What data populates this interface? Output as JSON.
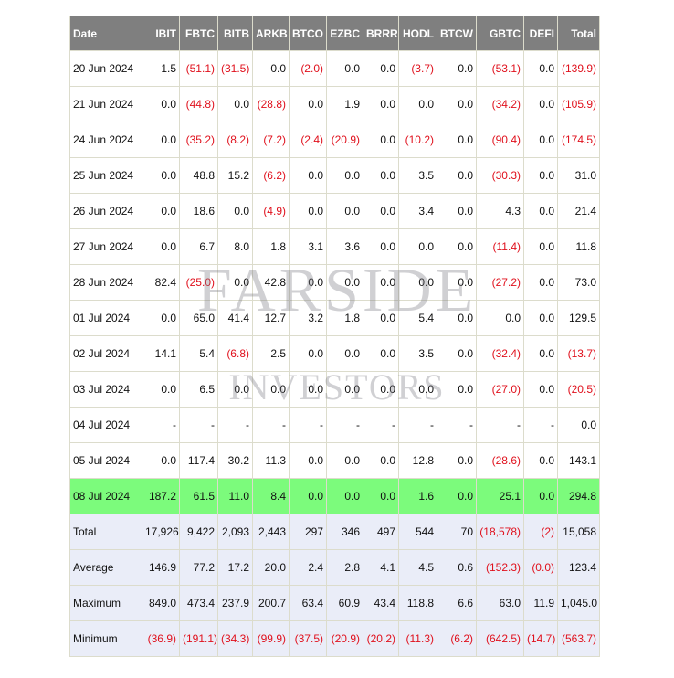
{
  "watermark": {
    "line1": "FARSIDE",
    "line2": "INVESTORS"
  },
  "table": {
    "header": [
      "Date",
      "IBIT",
      "FBTC",
      "BITB",
      "ARKB",
      "BTCO",
      "EZBC",
      "BRRR",
      "HODL",
      "BTCW",
      "GBTC",
      "DEFI",
      "Total"
    ],
    "rows": [
      [
        "20 Jun 2024",
        "1.5",
        "(51.1)",
        "(31.5)",
        "0.0",
        "(2.0)",
        "0.0",
        "0.0",
        "(3.7)",
        "0.0",
        "(53.1)",
        "0.0",
        "(139.9)"
      ],
      [
        "21 Jun 2024",
        "0.0",
        "(44.8)",
        "0.0",
        "(28.8)",
        "0.0",
        "1.9",
        "0.0",
        "0.0",
        "0.0",
        "(34.2)",
        "0.0",
        "(105.9)"
      ],
      [
        "24 Jun 2024",
        "0.0",
        "(35.2)",
        "(8.2)",
        "(7.2)",
        "(2.4)",
        "(20.9)",
        "0.0",
        "(10.2)",
        "0.0",
        "(90.4)",
        "0.0",
        "(174.5)"
      ],
      [
        "25 Jun 2024",
        "0.0",
        "48.8",
        "15.2",
        "(6.2)",
        "0.0",
        "0.0",
        "0.0",
        "3.5",
        "0.0",
        "(30.3)",
        "0.0",
        "31.0"
      ],
      [
        "26 Jun 2024",
        "0.0",
        "18.6",
        "0.0",
        "(4.9)",
        "0.0",
        "0.0",
        "0.0",
        "3.4",
        "0.0",
        "4.3",
        "0.0",
        "21.4"
      ],
      [
        "27 Jun 2024",
        "0.0",
        "6.7",
        "8.0",
        "1.8",
        "3.1",
        "3.6",
        "0.0",
        "0.0",
        "0.0",
        "(11.4)",
        "0.0",
        "11.8"
      ],
      [
        "28 Jun 2024",
        "82.4",
        "(25.0)",
        "0.0",
        "42.8",
        "0.0",
        "0.0",
        "0.0",
        "0.0",
        "0.0",
        "(27.2)",
        "0.0",
        "73.0"
      ],
      [
        "01 Jul 2024",
        "0.0",
        "65.0",
        "41.4",
        "12.7",
        "3.2",
        "1.8",
        "0.0",
        "5.4",
        "0.0",
        "0.0",
        "0.0",
        "129.5"
      ],
      [
        "02 Jul 2024",
        "14.1",
        "5.4",
        "(6.8)",
        "2.5",
        "0.0",
        "0.0",
        "0.0",
        "3.5",
        "0.0",
        "(32.4)",
        "0.0",
        "(13.7)"
      ],
      [
        "03 Jul 2024",
        "0.0",
        "6.5",
        "0.0",
        "0.0",
        "0.0",
        "0.0",
        "0.0",
        "0.0",
        "0.0",
        "(27.0)",
        "0.0",
        "(20.5)"
      ],
      [
        "04 Jul 2024",
        "-",
        "-",
        "-",
        "-",
        "-",
        "-",
        "-",
        "-",
        "-",
        "-",
        "-",
        "0.0"
      ],
      [
        "05 Jul 2024",
        "0.0",
        "117.4",
        "30.2",
        "11.3",
        "0.0",
        "0.0",
        "0.0",
        "12.8",
        "0.0",
        "(28.6)",
        "0.0",
        "143.1"
      ],
      [
        "08 Jul 2024",
        "187.2",
        "61.5",
        "11.0",
        "8.4",
        "0.0",
        "0.0",
        "0.0",
        "1.6",
        "0.0",
        "25.1",
        "0.0",
        "294.8"
      ]
    ],
    "summary": [
      [
        "Total",
        "17,926",
        "9,422",
        "2,093",
        "2,443",
        "297",
        "346",
        "497",
        "544",
        "70",
        "(18,578)",
        "(2)",
        "15,058"
      ],
      [
        "Average",
        "146.9",
        "77.2",
        "17.2",
        "20.0",
        "2.4",
        "2.8",
        "4.1",
        "4.5",
        "0.6",
        "(152.3)",
        "(0.0)",
        "123.4"
      ],
      [
        "Maximum",
        "849.0",
        "473.4",
        "237.9",
        "200.7",
        "63.4",
        "60.9",
        "43.4",
        "118.8",
        "6.6",
        "63.0",
        "11.9",
        "1,045.0"
      ],
      [
        "Minimum",
        "(36.9)",
        "(191.1)",
        "(34.3)",
        "(99.9)",
        "(37.5)",
        "(20.9)",
        "(20.2)",
        "(11.3)",
        "(6.2)",
        "(642.5)",
        "(14.7)",
        "(563.7)"
      ]
    ]
  }
}
